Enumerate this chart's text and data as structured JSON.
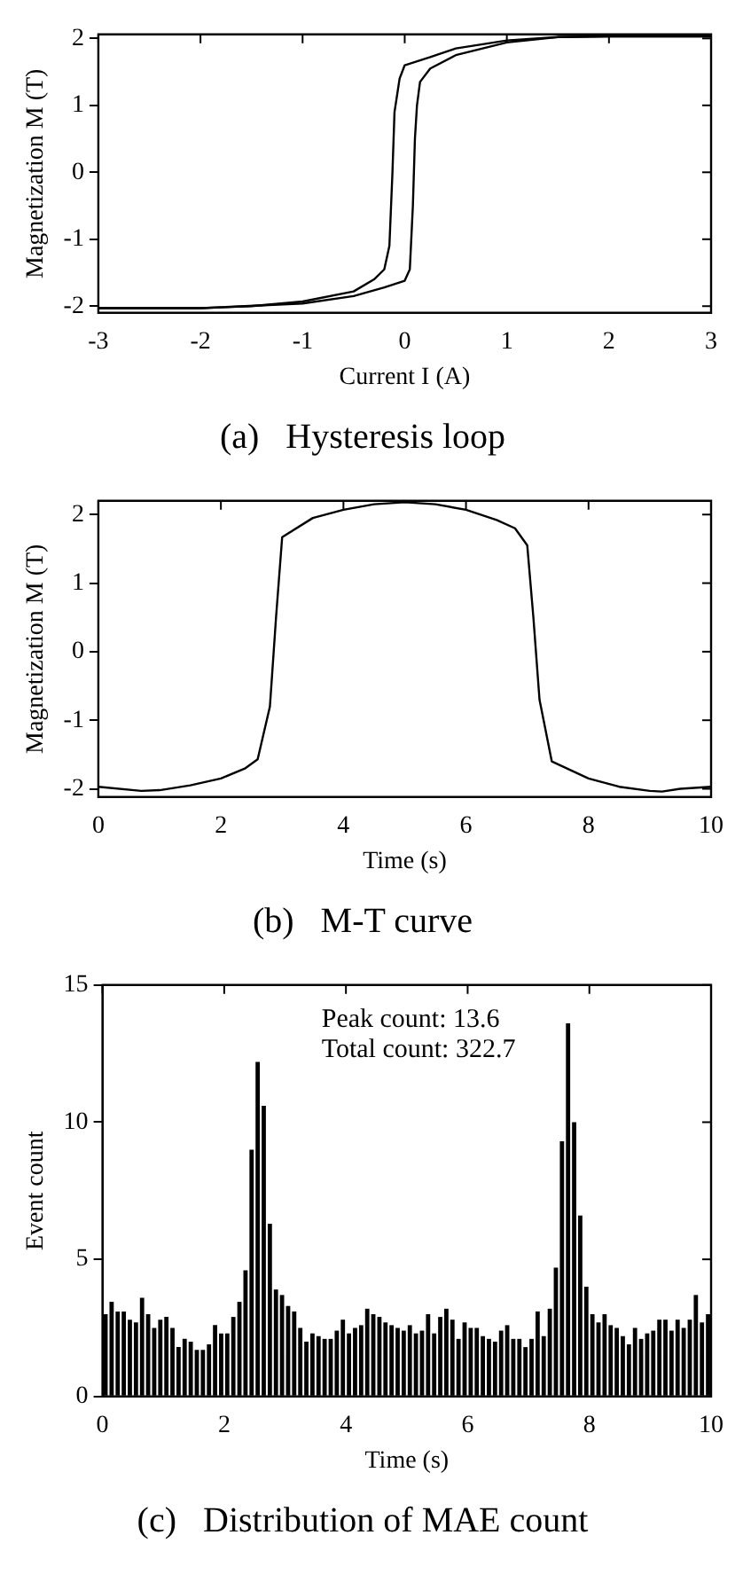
{
  "chart_data": [
    {
      "type": "line",
      "title": "(a)   Hysteresis loop",
      "xlabel": "Current I (A)",
      "ylabel": "Magnetization M (T)",
      "xlim": [
        -3,
        3
      ],
      "ylim": [
        -2.1,
        2.06
      ],
      "xticks": [
        -3,
        -2,
        -1,
        0,
        1,
        2,
        3
      ],
      "yticks": [
        -2,
        -1,
        0,
        1,
        2
      ],
      "grid": false,
      "legend": false,
      "series": [
        {
          "color": "#000000",
          "x": [
            3,
            2,
            1.5,
            1,
            0.5,
            0.25,
            0,
            -0.05,
            -0.1,
            -0.12,
            -0.15,
            -0.2,
            -0.3,
            -0.5,
            -1,
            -1.5,
            -2,
            -3
          ],
          "values": [
            2.03,
            2.03,
            2.02,
            1.97,
            1.85,
            1.72,
            1.6,
            1.4,
            0.9,
            0,
            -1.1,
            -1.45,
            -1.6,
            -1.78,
            -1.93,
            -2,
            -2.03,
            -2.03
          ]
        },
        {
          "color": "#000000",
          "x": [
            -3,
            -2,
            -1,
            -0.5,
            -0.2,
            0,
            0.05,
            0.08,
            0.1,
            0.12,
            0.15,
            0.25,
            0.5,
            1,
            1.5,
            2,
            3
          ],
          "values": [
            -2.03,
            -2.03,
            -1.96,
            -1.85,
            -1.72,
            -1.62,
            -1.45,
            -0.5,
            0.5,
            1,
            1.35,
            1.55,
            1.75,
            1.94,
            2.02,
            2.03,
            2.03
          ]
        }
      ]
    },
    {
      "type": "line",
      "title": "(b)   M-T curve",
      "xlabel": "Time (s)",
      "ylabel": "Magnetization M (T)",
      "xlim": [
        0,
        10
      ],
      "ylim": [
        -2.12,
        2.2
      ],
      "xticks": [
        0,
        2,
        4,
        6,
        8,
        10
      ],
      "yticks": [
        -2,
        -1,
        0,
        1,
        2
      ],
      "grid": false,
      "legend": false,
      "series": [
        {
          "color": "#000000",
          "x": [
            0,
            0.7,
            1,
            1.5,
            2,
            2.4,
            2.6,
            2.8,
            2.9,
            3,
            3.5,
            4,
            4.5,
            5,
            5.5,
            6,
            6.5,
            6.8,
            7,
            7.1,
            7.2,
            7.4,
            8,
            8.5,
            9,
            9.2,
            9.5,
            10
          ],
          "values": [
            -1.97,
            -2.03,
            -2.02,
            -1.95,
            -1.85,
            -1.7,
            -1.57,
            -0.8,
            0.5,
            1.67,
            1.95,
            2.07,
            2.15,
            2.18,
            2.15,
            2.07,
            1.92,
            1.8,
            1.55,
            0.5,
            -0.7,
            -1.6,
            -1.85,
            -1.97,
            -2.03,
            -2.04,
            -2,
            -1.97
          ]
        }
      ]
    },
    {
      "type": "histogram",
      "title": "(c)   Distribution of MAE count",
      "xlabel": "Time (s)",
      "ylabel": "Event count",
      "xlim": [
        0,
        10
      ],
      "ylim": [
        0,
        15
      ],
      "xticks": [
        0,
        2,
        4,
        6,
        8,
        10
      ],
      "yticks": [
        0,
        5,
        10,
        15
      ],
      "grid": false,
      "legend": false,
      "color": "#000000",
      "annotations": [
        "Peak count: 13.6",
        "Total count: 322.7"
      ],
      "bins": [
        0,
        0.1,
        0.2,
        0.3,
        0.4,
        0.5,
        0.6,
        0.7,
        0.8,
        0.9,
        1,
        1.1,
        1.2,
        1.3,
        1.4,
        1.5,
        1.6,
        1.7,
        1.8,
        1.9,
        2,
        2.1,
        2.2,
        2.3,
        2.4,
        2.5,
        2.6,
        2.7,
        2.8,
        2.9,
        3,
        3.1,
        3.2,
        3.3,
        3.4,
        3.5,
        3.6,
        3.7,
        3.8,
        3.9,
        4,
        4.1,
        4.2,
        4.3,
        4.4,
        4.5,
        4.6,
        4.7,
        4.8,
        4.9,
        5,
        5.1,
        5.2,
        5.3,
        5.4,
        5.5,
        5.6,
        5.7,
        5.8,
        5.9,
        6,
        6.1,
        6.2,
        6.3,
        6.4,
        6.5,
        6.6,
        6.7,
        6.8,
        6.9,
        7,
        7.1,
        7.2,
        7.3,
        7.4,
        7.5,
        7.6,
        7.7,
        7.8,
        7.9,
        8,
        8.1,
        8.2,
        8.3,
        8.4,
        8.5,
        8.6,
        8.7,
        8.8,
        8.9,
        9,
        9.1,
        9.2,
        9.3,
        9.4,
        9.5,
        9.6,
        9.7,
        9.8,
        9.9,
        10
      ],
      "values": [
        3.0,
        3.45,
        3.1,
        3.1,
        2.8,
        2.7,
        3.6,
        3.0,
        2.5,
        2.8,
        2.9,
        2.5,
        1.8,
        2.1,
        2.0,
        1.7,
        1.7,
        1.9,
        2.6,
        2.3,
        2.3,
        2.9,
        3.45,
        4.6,
        9.0,
        12.2,
        10.6,
        6.3,
        3.9,
        3.7,
        3.3,
        3.1,
        2.5,
        2.0,
        2.3,
        2.2,
        2.1,
        2.1,
        2.4,
        2.8,
        2.3,
        2.5,
        2.6,
        3.2,
        3.0,
        2.9,
        2.7,
        2.6,
        2.5,
        2.4,
        2.6,
        2.3,
        2.4,
        3.0,
        2.3,
        2.9,
        3.2,
        2.8,
        2.1,
        2.7,
        2.5,
        2.5,
        2.2,
        2.1,
        2.0,
        2.4,
        2.6,
        2.1,
        2.1,
        1.8,
        2.1,
        3.1,
        2.2,
        3.2,
        4.7,
        9.3,
        13.6,
        10.0,
        6.6,
        4.0,
        3.0,
        2.7,
        3.0,
        2.6,
        2.5,
        2.2,
        1.9,
        2.5,
        2.1,
        2.3,
        2.4,
        2.8,
        2.8,
        2.4,
        2.8,
        2.5,
        2.8,
        3.7,
        2.7,
        3.0
      ]
    }
  ]
}
